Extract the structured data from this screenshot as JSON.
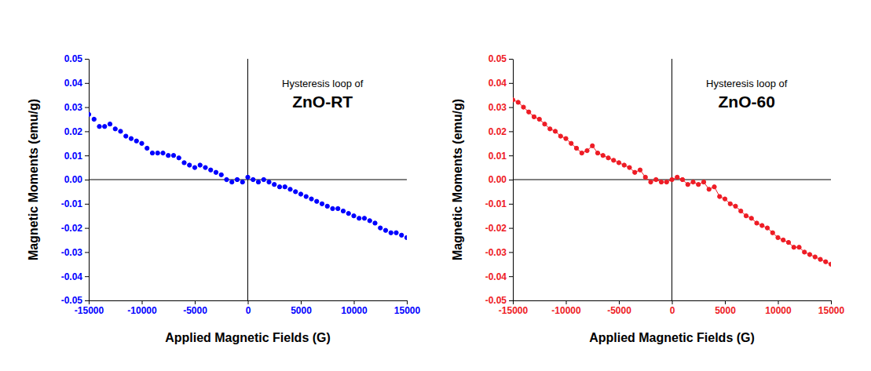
{
  "chart_data": [
    {
      "type": "scatter",
      "title": "ZnO-RT",
      "subtitle": "Hysteresis loop of",
      "x_label": "Applied Magnetic Fields (G)",
      "y_label": "Magnetic Moments (emu/g)",
      "color": "#0000ff",
      "marker": "circle",
      "line_style": "none",
      "xlim": [
        -15000,
        15000
      ],
      "xticks": [
        -15000,
        -10000,
        -5000,
        0,
        5000,
        10000,
        15000
      ],
      "ylim": [
        -0.05,
        0.05
      ],
      "yticks": [
        -0.05,
        -0.04,
        -0.03,
        -0.02,
        -0.01,
        {
          "value": 0,
          "label": "0.00"
        },
        0.01,
        0.02,
        0.03,
        0.04,
        0.05
      ],
      "x": [
        -15000,
        -14500,
        -14000,
        -13500,
        -13000,
        -12500,
        -12000,
        -11500,
        -11000,
        -10500,
        -10000,
        -9500,
        -9000,
        -8500,
        -8000,
        -7500,
        -7000,
        -6500,
        -6000,
        -5500,
        -5000,
        -4500,
        -4000,
        -3500,
        -3000,
        -2500,
        -2000,
        -1500,
        -1000,
        -500,
        0,
        500,
        1000,
        1500,
        2000,
        2500,
        3000,
        3500,
        4000,
        4500,
        5000,
        5500,
        6000,
        6500,
        7000,
        7500,
        8000,
        8500,
        9000,
        9500,
        10000,
        10500,
        11000,
        11500,
        12000,
        12500,
        13000,
        13500,
        14000,
        14500,
        15000
      ],
      "values": [
        0.027,
        0.025,
        0.022,
        0.022,
        0.023,
        0.021,
        0.02,
        0.018,
        0.017,
        0.016,
        0.015,
        0.013,
        0.011,
        0.011,
        0.011,
        0.01,
        0.01,
        0.009,
        0.007,
        0.006,
        0.005,
        0.006,
        0.005,
        0.004,
        0.003,
        0.002,
        0.0,
        -0.001,
        0.0,
        -0.001,
        0.001,
        0.0,
        -0.001,
        0.0,
        -0.001,
        -0.002,
        -0.003,
        -0.003,
        -0.004,
        -0.005,
        -0.006,
        -0.007,
        -0.008,
        -0.009,
        -0.01,
        -0.011,
        -0.012,
        -0.012,
        -0.013,
        -0.014,
        -0.015,
        -0.016,
        -0.016,
        -0.017,
        -0.018,
        -0.02,
        -0.021,
        -0.022,
        -0.022,
        -0.023,
        -0.024
      ]
    },
    {
      "type": "scatter",
      "title": "ZnO-60",
      "subtitle": "Hysteresis loop of",
      "x_label": "Applied Magnetic Fields (G)",
      "y_label": "Magnetic Moments (emu/g)",
      "color": "#ee1c25",
      "marker": "circle",
      "line_style": "solid",
      "xlim": [
        -15000,
        15000
      ],
      "xticks": [
        -15000,
        -10000,
        -5000,
        0,
        5000,
        10000,
        15000
      ],
      "ylim": [
        -0.05,
        0.05
      ],
      "yticks": [
        -0.05,
        -0.04,
        -0.03,
        -0.02,
        -0.01,
        {
          "value": 0,
          "label": "0.00"
        },
        0.01,
        0.02,
        0.03,
        0.04,
        0.05
      ],
      "x": [
        -15000,
        -14500,
        -14000,
        -13500,
        -13000,
        -12500,
        -12000,
        -11500,
        -11000,
        -10500,
        -10000,
        -9500,
        -9000,
        -8500,
        -8000,
        -7500,
        -7000,
        -6500,
        -6000,
        -5500,
        -5000,
        -4500,
        -4000,
        -3500,
        -3000,
        -2500,
        -2000,
        -1500,
        -1000,
        -500,
        0,
        500,
        1000,
        1500,
        2000,
        2500,
        3000,
        3500,
        4000,
        4500,
        5000,
        5500,
        6000,
        6500,
        7000,
        7500,
        8000,
        8500,
        9000,
        9500,
        10000,
        10500,
        11000,
        11500,
        12000,
        12500,
        13000,
        13500,
        14000,
        14500,
        15000
      ],
      "values": [
        0.033,
        0.032,
        0.03,
        0.028,
        0.026,
        0.025,
        0.023,
        0.021,
        0.02,
        0.018,
        0.017,
        0.015,
        0.013,
        0.011,
        0.012,
        0.014,
        0.011,
        0.01,
        0.009,
        0.008,
        0.007,
        0.006,
        0.005,
        0.003,
        0.004,
        0.001,
        -0.001,
        0.0,
        -0.001,
        -0.001,
        0.0,
        0.001,
        0.0,
        -0.002,
        -0.001,
        -0.002,
        -0.001,
        -0.004,
        -0.003,
        -0.007,
        -0.008,
        -0.01,
        -0.011,
        -0.013,
        -0.015,
        -0.016,
        -0.018,
        -0.019,
        -0.02,
        -0.022,
        -0.024,
        -0.025,
        -0.026,
        -0.028,
        -0.028,
        -0.03,
        -0.031,
        -0.032,
        -0.033,
        -0.034,
        -0.035
      ]
    }
  ]
}
